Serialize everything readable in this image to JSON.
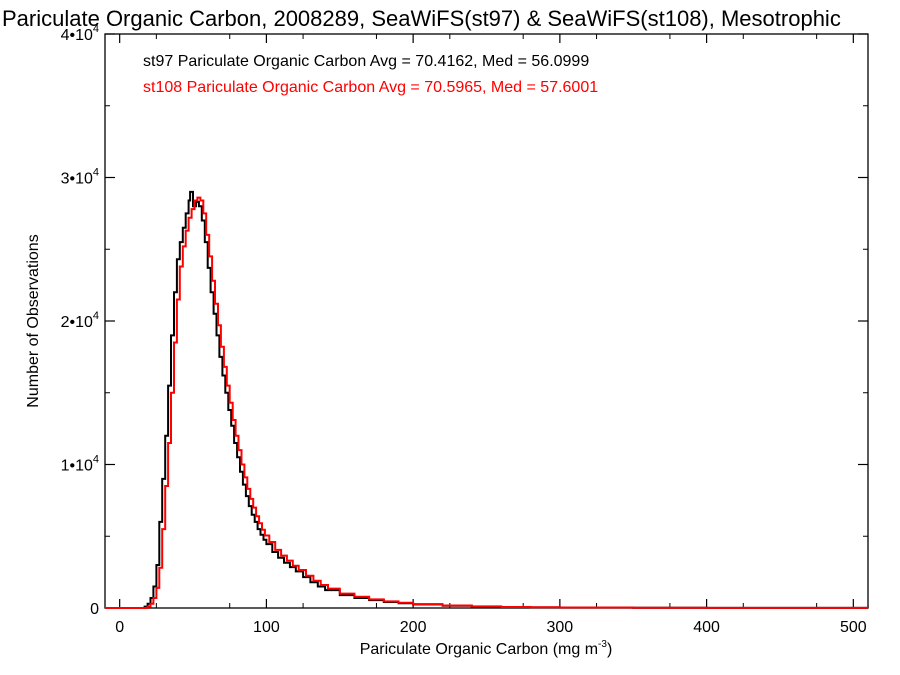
{
  "chart_data": {
    "type": "line",
    "title": "Pariculate Organic Carbon, 2008289, SeaWiFS(st97) & SeaWiFS(st108), Mesotrophic",
    "xlabel": "Pariculate Organic Carbon (mg m",
    "xlabel_sup": "-3",
    "xlabel_end": ")",
    "ylabel": "Number of Observations",
    "xlim": [
      -10,
      510
    ],
    "ylim": [
      0,
      40000
    ],
    "grid": false,
    "legend_position": "top-left",
    "x_ticks": [
      {
        "value": 0,
        "label": "0"
      },
      {
        "value": 100,
        "label": "100"
      },
      {
        "value": 200,
        "label": "200"
      },
      {
        "value": 300,
        "label": "300"
      },
      {
        "value": 400,
        "label": "400"
      },
      {
        "value": 500,
        "label": "500"
      }
    ],
    "y_ticks": [
      {
        "value": 0,
        "base": "0",
        "exp": ""
      },
      {
        "value": 10000,
        "base": "1•10",
        "exp": "4"
      },
      {
        "value": 20000,
        "base": "2•10",
        "exp": "4"
      },
      {
        "value": 30000,
        "base": "3•10",
        "exp": "4"
      },
      {
        "value": 40000,
        "base": "4•10",
        "exp": "4"
      }
    ],
    "legend": [
      {
        "text": "st97 Pariculate Organic Carbon Avg = 70.4162, Med = 56.0999",
        "color": "#000000"
      },
      {
        "text": "st108 Pariculate Organic Carbon Avg = 70.5965, Med = 57.6001",
        "color": "#ff0000"
      }
    ],
    "series": [
      {
        "color": "#000000",
        "points": [
          [
            -10,
            0
          ],
          [
            15,
            0
          ],
          [
            17,
            100
          ],
          [
            19,
            300
          ],
          [
            21,
            700
          ],
          [
            23,
            1500
          ],
          [
            25,
            3000
          ],
          [
            27,
            6000
          ],
          [
            29,
            9000
          ],
          [
            31,
            12000
          ],
          [
            33,
            15500
          ],
          [
            35,
            19000
          ],
          [
            37,
            22000
          ],
          [
            39,
            24300
          ],
          [
            41,
            25500
          ],
          [
            43,
            26500
          ],
          [
            45,
            27500
          ],
          [
            47,
            28400
          ],
          [
            48,
            29000
          ],
          [
            50,
            28000
          ],
          [
            52,
            28300
          ],
          [
            54,
            28000
          ],
          [
            56,
            27000
          ],
          [
            58,
            25500
          ],
          [
            60,
            23700
          ],
          [
            62,
            22000
          ],
          [
            64,
            20500
          ],
          [
            66,
            19000
          ],
          [
            68,
            17500
          ],
          [
            70,
            16200
          ],
          [
            72,
            15000
          ],
          [
            74,
            13800
          ],
          [
            76,
            12700
          ],
          [
            78,
            11500
          ],
          [
            80,
            10500
          ],
          [
            82,
            9500
          ],
          [
            84,
            8600
          ],
          [
            86,
            7800
          ],
          [
            88,
            7100
          ],
          [
            90,
            6500
          ],
          [
            92,
            6000
          ],
          [
            94,
            5500
          ],
          [
            96,
            5100
          ],
          [
            98,
            4750
          ],
          [
            100,
            4450
          ],
          [
            104,
            3900
          ],
          [
            108,
            3500
          ],
          [
            112,
            3150
          ],
          [
            116,
            2850
          ],
          [
            120,
            2550
          ],
          [
            125,
            2150
          ],
          [
            130,
            1800
          ],
          [
            135,
            1500
          ],
          [
            140,
            1250
          ],
          [
            150,
            900
          ],
          [
            160,
            700
          ],
          [
            170,
            550
          ],
          [
            180,
            420
          ],
          [
            190,
            330
          ],
          [
            200,
            250
          ],
          [
            220,
            160
          ],
          [
            240,
            100
          ],
          [
            260,
            65
          ],
          [
            280,
            45
          ],
          [
            300,
            30
          ],
          [
            350,
            15
          ],
          [
            400,
            8
          ],
          [
            450,
            4
          ],
          [
            510,
            0
          ]
        ]
      },
      {
        "color": "#ff0000",
        "points": [
          [
            -10,
            0
          ],
          [
            17,
            0
          ],
          [
            19,
            100
          ],
          [
            21,
            300
          ],
          [
            23,
            700
          ],
          [
            25,
            1400
          ],
          [
            27,
            2800
          ],
          [
            29,
            5500
          ],
          [
            31,
            8500
          ],
          [
            33,
            11500
          ],
          [
            35,
            15000
          ],
          [
            37,
            18500
          ],
          [
            39,
            21500
          ],
          [
            41,
            23800
          ],
          [
            43,
            25200
          ],
          [
            45,
            26300
          ],
          [
            47,
            27200
          ],
          [
            49,
            27800
          ],
          [
            51,
            28400
          ],
          [
            53,
            28600
          ],
          [
            55,
            28400
          ],
          [
            57,
            27500
          ],
          [
            59,
            26000
          ],
          [
            61,
            24500
          ],
          [
            63,
            22800
          ],
          [
            65,
            21200
          ],
          [
            67,
            19700
          ],
          [
            69,
            18200
          ],
          [
            71,
            16800
          ],
          [
            73,
            15500
          ],
          [
            75,
            14300
          ],
          [
            77,
            13100
          ],
          [
            79,
            12000
          ],
          [
            81,
            11000
          ],
          [
            83,
            10000
          ],
          [
            85,
            9100
          ],
          [
            87,
            8300
          ],
          [
            89,
            7600
          ],
          [
            91,
            7000
          ],
          [
            93,
            6400
          ],
          [
            95,
            5900
          ],
          [
            97,
            5450
          ],
          [
            99,
            5050
          ],
          [
            102,
            4600
          ],
          [
            106,
            4050
          ],
          [
            110,
            3650
          ],
          [
            114,
            3300
          ],
          [
            118,
            2950
          ],
          [
            122,
            2650
          ],
          [
            127,
            2250
          ],
          [
            132,
            1900
          ],
          [
            137,
            1600
          ],
          [
            142,
            1350
          ],
          [
            150,
            1000
          ],
          [
            160,
            780
          ],
          [
            170,
            600
          ],
          [
            180,
            460
          ],
          [
            190,
            360
          ],
          [
            200,
            270
          ],
          [
            220,
            175
          ],
          [
            240,
            110
          ],
          [
            260,
            70
          ],
          [
            280,
            48
          ],
          [
            300,
            32
          ],
          [
            350,
            16
          ],
          [
            400,
            9
          ],
          [
            450,
            4
          ],
          [
            510,
            0
          ]
        ]
      }
    ]
  }
}
